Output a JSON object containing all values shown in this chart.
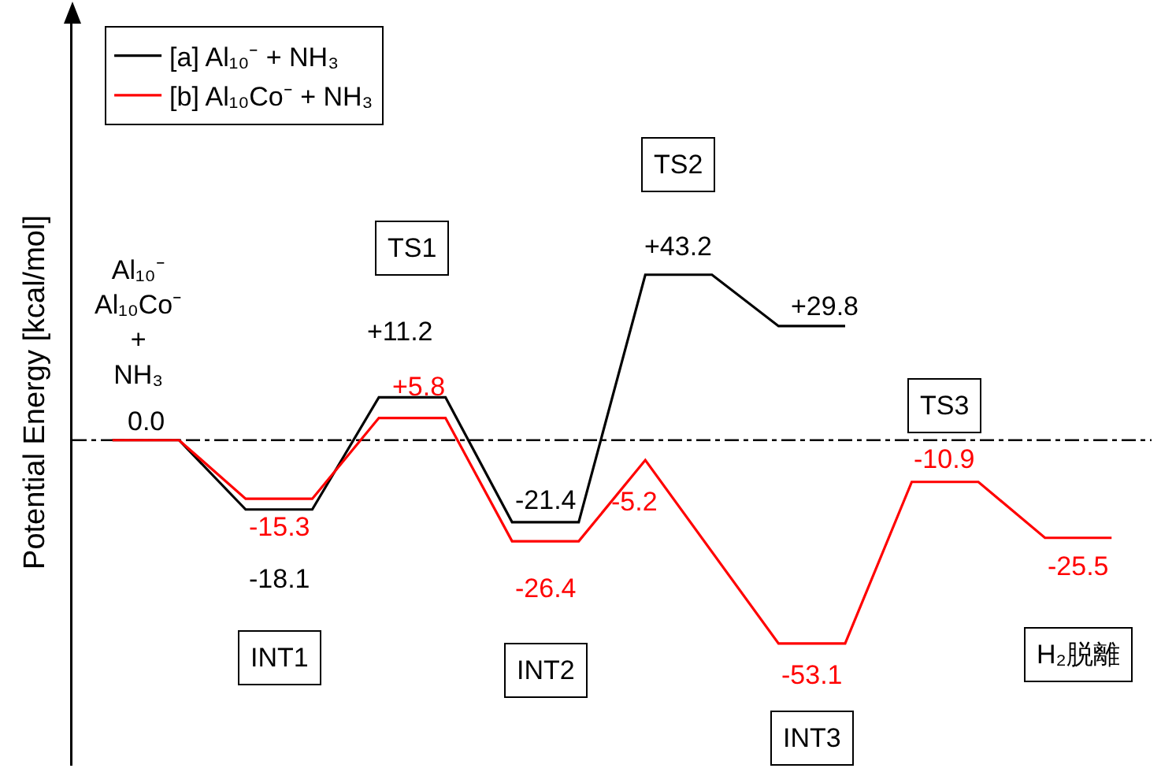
{
  "chart_data": {
    "type": "line",
    "ylabel": "Potential Energy [kcal/mol]",
    "categories": [
      null,
      null,
      null,
      null,
      null,
      null,
      null,
      null,
      null,
      null,
      null,
      null,
      null,
      null,
      null,
      null
    ],
    "series": [
      {
        "name": "[a] Al₁₀⁻ + NH₃",
        "color": "#000000",
        "values": [
          0.0,
          0.0,
          -18.1,
          -18.1,
          11.2,
          11.2,
          -21.4,
          -21.4,
          43.2,
          43.2,
          29.8,
          29.8,
          null,
          null,
          null,
          null
        ],
        "value_labels": [
          "0.0",
          null,
          "-18.1",
          null,
          "+11.2",
          null,
          "-21.4",
          null,
          "+43.2",
          null,
          "+29.8",
          null,
          null,
          null,
          null,
          null
        ]
      },
      {
        "name": "[b] Al₁₀Co⁻ + NH₃",
        "color": "#ff0000",
        "values": [
          0.0,
          0.0,
          -15.3,
          -15.3,
          5.8,
          5.8,
          -26.4,
          -26.4,
          -5.2,
          null,
          -53.1,
          -53.1,
          -10.9,
          -10.9,
          -25.5,
          -25.5
        ],
        "value_labels": [
          null,
          null,
          "-15.3",
          null,
          "+5.8",
          null,
          "-26.4",
          null,
          "-5.2",
          null,
          "-53.1",
          null,
          "-10.9",
          null,
          "-25.5",
          null
        ]
      }
    ],
    "ylim": [
      -85,
      110
    ],
    "legend": "top left",
    "marker": "none",
    "line_style": "solid",
    "ref_lines": [
      {
        "axis": "y",
        "value": 0,
        "color": "#000000",
        "line_style": "dashdot"
      }
    ],
    "annotations": [
      "Al₁₀⁻\nAl₁₀Co⁻\n+\nNH₃",
      "INT1",
      "TS1",
      "INT2",
      "TS2",
      "INT3",
      "TS3",
      "H₂脱離"
    ]
  }
}
